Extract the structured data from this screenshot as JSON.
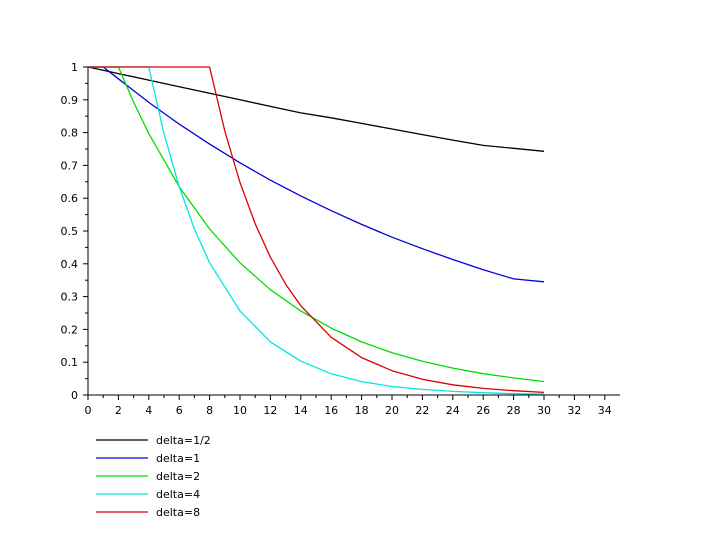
{
  "chart_data": {
    "type": "line",
    "title": "",
    "xlabel": "",
    "ylabel": "",
    "xlim": [
      0,
      35
    ],
    "ylim": [
      0,
      1
    ],
    "xticks": [
      0,
      2,
      4,
      6,
      8,
      10,
      12,
      14,
      16,
      18,
      20,
      22,
      24,
      26,
      28,
      30,
      32,
      34
    ],
    "yticks": [
      0,
      0.1,
      0.2,
      0.3,
      0.4,
      0.5,
      0.6,
      0.7,
      0.8,
      0.9,
      1
    ],
    "grid": false,
    "legend_position": "bottom-left",
    "series": [
      {
        "name": "delta=1/2",
        "color": "#000000",
        "x": [
          0,
          1,
          2,
          4,
          6,
          8,
          10,
          12,
          14,
          16,
          18,
          20,
          22,
          24,
          26,
          28,
          30
        ],
        "y": [
          1,
          0.99,
          0.98,
          0.96,
          0.94,
          0.92,
          0.9,
          0.88,
          0.86,
          0.845,
          0.828,
          0.811,
          0.794,
          0.777,
          0.761,
          0.752,
          0.743
        ]
      },
      {
        "name": "delta=1",
        "color": "#0000dd",
        "x": [
          0,
          1,
          2,
          4,
          6,
          8,
          10,
          12,
          14,
          16,
          18,
          20,
          22,
          24,
          26,
          28,
          30
        ],
        "y": [
          1,
          1,
          0.964,
          0.892,
          0.826,
          0.765,
          0.708,
          0.655,
          0.607,
          0.562,
          0.52,
          0.481,
          0.446,
          0.413,
          0.382,
          0.354,
          0.345
        ]
      },
      {
        "name": "delta=2",
        "color": "#00dd00",
        "x": [
          0,
          2,
          3,
          4,
          6,
          8,
          10,
          12,
          14,
          16,
          18,
          20,
          22,
          24,
          26,
          28,
          30
        ],
        "y": [
          1,
          1,
          0.893,
          0.797,
          0.635,
          0.506,
          0.403,
          0.321,
          0.256,
          0.204,
          0.162,
          0.129,
          0.103,
          0.082,
          0.065,
          0.052,
          0.041
        ]
      },
      {
        "name": "delta=4",
        "color": "#00e5e5",
        "x": [
          0,
          4,
          5,
          6,
          7,
          8,
          10,
          12,
          14,
          16,
          18,
          20,
          22,
          24,
          26,
          28,
          30
        ],
        "y": [
          1,
          1,
          0.797,
          0.635,
          0.506,
          0.403,
          0.256,
          0.162,
          0.103,
          0.065,
          0.041,
          0.026,
          0.017,
          0.011,
          0.007,
          0.004,
          0.003
        ]
      },
      {
        "name": "delta=8",
        "color": "#dd0000",
        "x": [
          0,
          8,
          9,
          10,
          11,
          12,
          13,
          14,
          16,
          18,
          20,
          22,
          24,
          26,
          28,
          30
        ],
        "y": [
          1,
          1,
          0.805,
          0.648,
          0.522,
          0.42,
          0.338,
          0.272,
          0.176,
          0.114,
          0.074,
          0.048,
          0.031,
          0.02,
          0.013,
          0.008
        ]
      }
    ]
  }
}
